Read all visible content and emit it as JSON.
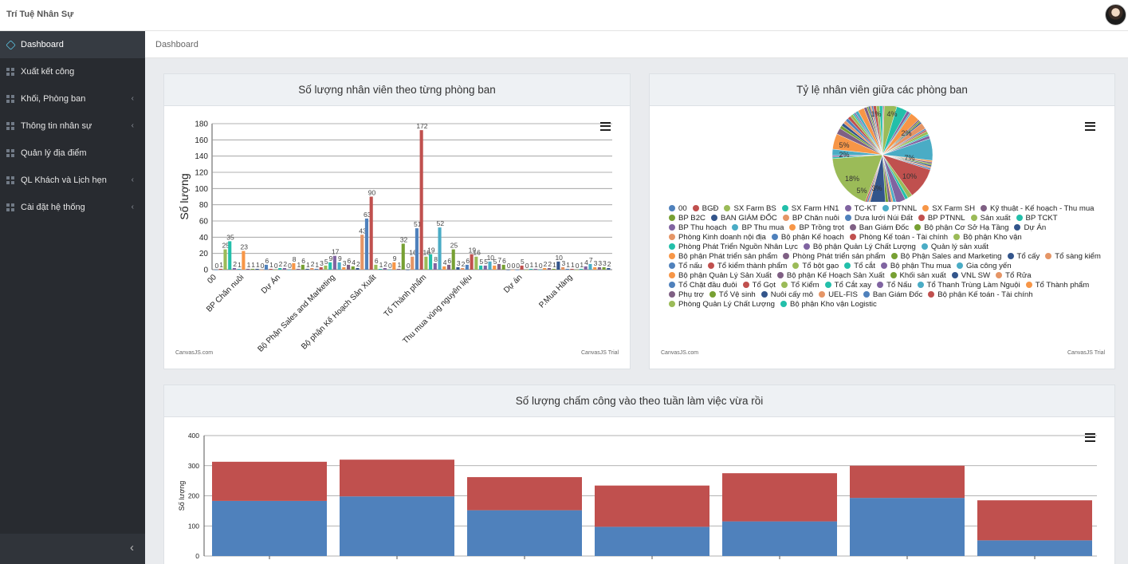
{
  "app": {
    "title": "Trí Tuệ Nhân Sự"
  },
  "sidebar": {
    "items": [
      {
        "label": "Dashboard"
      },
      {
        "label": "Xuất kết công"
      },
      {
        "label": "Khối, Phòng ban"
      },
      {
        "label": "Thông tin nhân sự"
      },
      {
        "label": "Quản lý địa điểm"
      },
      {
        "label": "QL Khách và Lịch hẹn"
      },
      {
        "label": "Cài đặt hệ thống"
      }
    ]
  },
  "breadcrumb": "Dashboard",
  "panels": {
    "bar": {
      "title": "Số lượng nhân viên theo từng phòng ban",
      "credit_left": "CanvasJS.com",
      "credit_right": "CanvasJS Trial"
    },
    "pie": {
      "title": "Tỷ lệ nhân viên giữa các phòng ban",
      "credit_left": "CanvasJS.com",
      "credit_right": "CanvasJS Trial"
    },
    "weekly": {
      "title": "Số lượng chấm công vào theo tuần làm việc vừa rồi"
    }
  },
  "chart_data": [
    {
      "type": "bar",
      "ylabel": "Số lượng",
      "ylim": [
        0,
        180
      ],
      "yticks": [
        0,
        20,
        40,
        60,
        80,
        100,
        120,
        140,
        160,
        180
      ],
      "grid": true,
      "visible_category_labels": [
        "00",
        "BP Chăn nuôi",
        "Dự Án",
        "Bộ Phận Sales and Marketing",
        "Bộ phận Kế Hoạch Sản Xuất",
        "Tổ Thành phẩm",
        "Thu mua vùng nguyên liệu",
        "Dự án",
        "P.Mua Hàng"
      ],
      "values": [
        0,
        1,
        25,
        35,
        2,
        1,
        23,
        1,
        1,
        1,
        0,
        6,
        1,
        0,
        2,
        2,
        0,
        8,
        1,
        6,
        1,
        2,
        1,
        3,
        5,
        9,
        17,
        9,
        3,
        6,
        4,
        2,
        43,
        63,
        90,
        6,
        1,
        2,
        0,
        9,
        1,
        32,
        0,
        16,
        51,
        172,
        16,
        19,
        8,
        52,
        4,
        6,
        25,
        3,
        2,
        6,
        19,
        16,
        5,
        5,
        10,
        5,
        7,
        6,
        0,
        0,
        0,
        5,
        0,
        1,
        1,
        0,
        2,
        2,
        1,
        10,
        3,
        1,
        1,
        0,
        1,
        4,
        7,
        3,
        3,
        3,
        2
      ],
      "value_labels": [
        "0",
        "1",
        "25",
        "35",
        "2",
        "1",
        "23",
        "1",
        "1",
        "1",
        "0",
        "6",
        "1",
        "0",
        "2",
        "2",
        "0",
        "8",
        "1",
        "6",
        "1",
        "2",
        "1",
        "3",
        "5",
        "9",
        "17",
        "9",
        "3",
        "6",
        "4",
        "2",
        "43",
        "63",
        "90",
        "6",
        "1",
        "2",
        "0",
        "9",
        "1",
        "32",
        "0",
        "16",
        "51",
        "172",
        "16",
        "19",
        "8",
        "52",
        "4",
        "6",
        "25",
        "3",
        "2",
        "6",
        "19",
        "16",
        "5",
        "5",
        "10",
        "5",
        "7",
        "6",
        "0",
        "0",
        "0",
        "5",
        "0",
        "1",
        "1",
        "0",
        "2",
        "2",
        "1",
        "10",
        "3",
        "1",
        "1",
        "0",
        "1",
        "4",
        "7",
        "3",
        "3",
        "3",
        "2"
      ],
      "colors": [
        "#4F81BC",
        "#C0504E",
        "#9BBB58",
        "#23BFAA",
        "#8064A1",
        "#4AACC5",
        "#F79647",
        "#7F6084",
        "#77A033",
        "#33558B",
        "#E59566"
      ]
    },
    {
      "type": "pie",
      "slice_labels": [
        "1%",
        "4%",
        "2%",
        "7%",
        "10%",
        "3%",
        "5%",
        "18%",
        "2%",
        "5%"
      ],
      "slices": [
        {
          "name": "00",
          "value": 0.3
        },
        {
          "name": "BGĐ",
          "value": 0.3
        },
        {
          "name": "SX Farm BS",
          "value": 4
        },
        {
          "name": "SX Farm HN1",
          "value": 3.5
        },
        {
          "name": "TC-KT",
          "value": 1
        },
        {
          "name": "PTNNL",
          "value": 0.5
        },
        {
          "name": "SX Farm SH",
          "value": 3
        },
        {
          "name": "Kỹ thuật - Kế hoạch - Thu mua",
          "value": 0.5
        },
        {
          "name": "BP B2C",
          "value": 0.5
        },
        {
          "name": "BAN GIÁM ĐỐC",
          "value": 0.5
        },
        {
          "name": "BP Chăn nuôi",
          "value": 2
        },
        {
          "name": "Dưa lưới Núi Đất",
          "value": 0.5
        },
        {
          "name": "BP PTNNL",
          "value": 0.5
        },
        {
          "name": "Sản xuất",
          "value": 1
        },
        {
          "name": "BP TCKT",
          "value": 0.5
        },
        {
          "name": "BP Thu hoạch",
          "value": 1
        },
        {
          "name": "BP Thu mua",
          "value": 7
        },
        {
          "name": "BP Trồng trọt",
          "value": 0.5
        },
        {
          "name": "Ban Giám Đốc",
          "value": 0.5
        },
        {
          "name": "Bộ phận Cơ Sở Hạ Tầng",
          "value": 0.5
        },
        {
          "name": "Dự Án",
          "value": 0.5
        },
        {
          "name": "Phòng Kinh doanh nội địa",
          "value": 0.5
        },
        {
          "name": "Bộ phận Kế hoạch",
          "value": 0.5
        },
        {
          "name": "Phòng Kế toán - Tài chính",
          "value": 10
        },
        {
          "name": "Bộ phận Kho vận",
          "value": 1.5
        },
        {
          "name": "Phòng Phát Triển Nguồn Nhân Lực",
          "value": 1
        },
        {
          "name": "Bộ phận Quản Lý Chất Lượng",
          "value": 3
        },
        {
          "name": "Quản lý sản xuất",
          "value": 1
        },
        {
          "name": "Bộ phận Phát triển sản phẩm",
          "value": 0.5
        },
        {
          "name": "Phòng Phát triển sản phẩm",
          "value": 1
        },
        {
          "name": "Bộ Phận Sales and Marketing",
          "value": 1
        },
        {
          "name": "Tổ cấy",
          "value": 5
        },
        {
          "name": "Tổ sàng kiểm",
          "value": 0.5
        },
        {
          "name": "Tổ nấu",
          "value": 0.5
        },
        {
          "name": "Tổ kiểm thành phẩm",
          "value": 0.5
        },
        {
          "name": "Tổ bột gạo",
          "value": 18
        },
        {
          "name": "Tổ cắt",
          "value": 0.5
        },
        {
          "name": "Bộ phận Thu mua",
          "value": 0.5
        },
        {
          "name": "Gia công yến",
          "value": 2
        },
        {
          "name": "Bộ phận Quản Lý Sản Xuất",
          "value": 5
        },
        {
          "name": "Bộ phận Kế Hoạch Sản Xuất",
          "value": 2
        },
        {
          "name": "Khối sản xuất",
          "value": 1
        },
        {
          "name": "VNL SW",
          "value": 1
        },
        {
          "name": "Tổ Rửa",
          "value": 1
        },
        {
          "name": "Tổ Chặt đầu đuôi",
          "value": 1
        },
        {
          "name": "Tổ Gọt",
          "value": 1
        },
        {
          "name": "Tổ Kiểm",
          "value": 1
        },
        {
          "name": "Tổ Cắt xay",
          "value": 0.5
        },
        {
          "name": "Tổ Nấu",
          "value": 0.5
        },
        {
          "name": "Tổ Thanh Trùng Làm Nguội",
          "value": 1
        },
        {
          "name": "Tổ Thành phẩm",
          "value": 2
        },
        {
          "name": "Phụ trợ",
          "value": 1
        },
        {
          "name": "Tổ Vệ sinh",
          "value": 0.5
        },
        {
          "name": "Nuôi cấy mô",
          "value": 0.5
        },
        {
          "name": "UEL-FIS",
          "value": 0.5
        },
        {
          "name": "Ban Giám Đốc",
          "value": 0.5
        },
        {
          "name": "Bộ phận Kế toán - Tài chính",
          "value": 1
        },
        {
          "name": "Phòng Quản Lý Chất Lượng",
          "value": 1
        },
        {
          "name": "Bộ phận Kho vận Logistic",
          "value": 1
        }
      ],
      "legend_position": "bottom"
    },
    {
      "type": "bar",
      "stacked": true,
      "ylabel": "Số lượng",
      "ylim": [
        0,
        400
      ],
      "yticks": [
        0,
        100,
        200,
        300,
        400
      ],
      "series": [
        {
          "color": "#4F81BC",
          "values": [
            183,
            198,
            152,
            97,
            115,
            193,
            52
          ]
        },
        {
          "color": "#C0504E",
          "values": [
            130,
            122,
            110,
            137,
            160,
            107,
            133
          ]
        }
      ]
    }
  ]
}
